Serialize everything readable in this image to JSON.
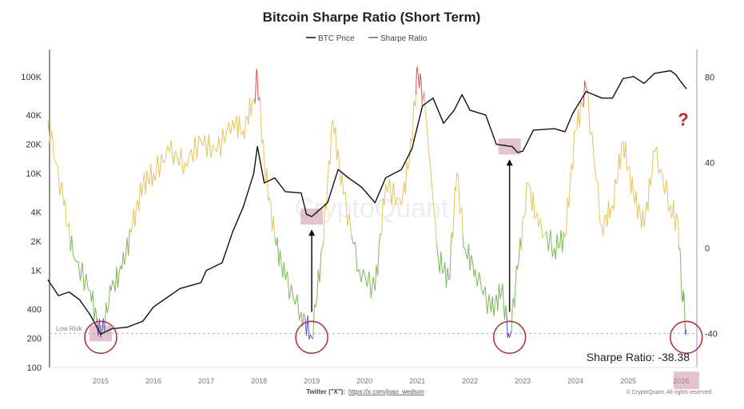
{
  "chart_data": {
    "type": "line",
    "title": "Bitcoin Sharpe Ratio (Short Term)",
    "legend": [
      {
        "name": "BTC Price",
        "color": "#111111"
      },
      {
        "name": "Sharpe Ratio",
        "color": "#6a5acd"
      }
    ],
    "legend_position": "top-center",
    "x_ticks": [
      "2015",
      "2016",
      "2017",
      "2018",
      "2019",
      "2020",
      "2021",
      "2022",
      "2023",
      "2024",
      "2025",
      "2026"
    ],
    "x_range": [
      2014.03,
      2026.3
    ],
    "y_left": {
      "scale": "log",
      "range": [
        100,
        190000
      ],
      "ticks": [
        100,
        200,
        400,
        1000,
        2000,
        4000,
        10000,
        20000,
        40000,
        100000
      ],
      "tick_labels": [
        "100",
        "200",
        "400",
        "1K",
        "2K",
        "4K",
        "10K",
        "20K",
        "40K",
        "100K"
      ]
    },
    "y_right": {
      "range": [
        -56,
        93
      ],
      "ticks": [
        -40,
        0,
        40,
        80
      ],
      "tick_labels": [
        "-40",
        "0",
        "40",
        "80"
      ]
    },
    "series": [
      {
        "name": "BTC Price",
        "axis": "left",
        "points": [
          [
            2014.0,
            800
          ],
          [
            2014.2,
            550
          ],
          [
            2014.4,
            600
          ],
          [
            2014.6,
            500
          ],
          [
            2014.8,
            350
          ],
          [
            2015.0,
            220
          ],
          [
            2015.2,
            250
          ],
          [
            2015.5,
            260
          ],
          [
            2015.8,
            300
          ],
          [
            2016.0,
            420
          ],
          [
            2016.5,
            650
          ],
          [
            2016.9,
            750
          ],
          [
            2017.0,
            1000
          ],
          [
            2017.3,
            1200
          ],
          [
            2017.5,
            2500
          ],
          [
            2017.7,
            4500
          ],
          [
            2017.9,
            10000
          ],
          [
            2017.97,
            19000
          ],
          [
            2018.1,
            8000
          ],
          [
            2018.3,
            9000
          ],
          [
            2018.5,
            6500
          ],
          [
            2018.8,
            6300
          ],
          [
            2018.9,
            3800
          ],
          [
            2019.0,
            3600
          ],
          [
            2019.3,
            5000
          ],
          [
            2019.5,
            11000
          ],
          [
            2019.7,
            9000
          ],
          [
            2019.95,
            7200
          ],
          [
            2020.2,
            5000
          ],
          [
            2020.4,
            9000
          ],
          [
            2020.7,
            11000
          ],
          [
            2020.9,
            18000
          ],
          [
            2021.0,
            30000
          ],
          [
            2021.1,
            50000
          ],
          [
            2021.3,
            60000
          ],
          [
            2021.5,
            33000
          ],
          [
            2021.7,
            45000
          ],
          [
            2021.85,
            65000
          ],
          [
            2022.0,
            45000
          ],
          [
            2022.3,
            40000
          ],
          [
            2022.5,
            20000
          ],
          [
            2022.8,
            19000
          ],
          [
            2022.9,
            16500
          ],
          [
            2023.0,
            17000
          ],
          [
            2023.2,
            28000
          ],
          [
            2023.6,
            29000
          ],
          [
            2023.8,
            27000
          ],
          [
            2023.95,
            42000
          ],
          [
            2024.2,
            70000
          ],
          [
            2024.5,
            60000
          ],
          [
            2024.7,
            60000
          ],
          [
            2024.9,
            95000
          ],
          [
            2025.1,
            100000
          ],
          [
            2025.3,
            85000
          ],
          [
            2025.5,
            108000
          ],
          [
            2025.8,
            115000
          ],
          [
            2025.9,
            105000
          ],
          [
            2026.0,
            88000
          ],
          [
            2026.1,
            75000
          ]
        ]
      },
      {
        "name": "Sharpe Ratio",
        "axis": "right",
        "points": [
          [
            2014.0,
            60
          ],
          [
            2014.3,
            20
          ],
          [
            2014.5,
            -5
          ],
          [
            2014.8,
            -20
          ],
          [
            2015.0,
            -42
          ],
          [
            2015.2,
            -20
          ],
          [
            2015.4,
            -10
          ],
          [
            2015.6,
            10
          ],
          [
            2015.8,
            30
          ],
          [
            2016.0,
            35
          ],
          [
            2016.3,
            45
          ],
          [
            2016.6,
            40
          ],
          [
            2016.9,
            50
          ],
          [
            2017.2,
            45
          ],
          [
            2017.5,
            60
          ],
          [
            2017.7,
            55
          ],
          [
            2017.9,
            70
          ],
          [
            2017.97,
            80
          ],
          [
            2018.1,
            40
          ],
          [
            2018.3,
            5
          ],
          [
            2018.5,
            -15
          ],
          [
            2018.8,
            -30
          ],
          [
            2019.0,
            -42
          ],
          [
            2019.2,
            0
          ],
          [
            2019.4,
            60
          ],
          [
            2019.6,
            25
          ],
          [
            2019.9,
            -10
          ],
          [
            2020.2,
            -20
          ],
          [
            2020.4,
            30
          ],
          [
            2020.7,
            20
          ],
          [
            2020.9,
            50
          ],
          [
            2021.0,
            85
          ],
          [
            2021.15,
            65
          ],
          [
            2021.4,
            -5
          ],
          [
            2021.6,
            -15
          ],
          [
            2021.75,
            35
          ],
          [
            2021.9,
            0
          ],
          [
            2022.1,
            -10
          ],
          [
            2022.4,
            -30
          ],
          [
            2022.6,
            -20
          ],
          [
            2022.75,
            -42
          ],
          [
            2022.9,
            -10
          ],
          [
            2023.1,
            30
          ],
          [
            2023.3,
            10
          ],
          [
            2023.6,
            0
          ],
          [
            2023.8,
            5
          ],
          [
            2024.0,
            55
          ],
          [
            2024.2,
            75
          ],
          [
            2024.5,
            10
          ],
          [
            2024.7,
            20
          ],
          [
            2024.9,
            50
          ],
          [
            2025.1,
            25
          ],
          [
            2025.3,
            10
          ],
          [
            2025.5,
            45
          ],
          [
            2025.8,
            20
          ],
          [
            2025.95,
            10
          ],
          [
            2026.0,
            -15
          ],
          [
            2026.05,
            -25
          ],
          [
            2026.1,
            -38.38
          ]
        ]
      }
    ],
    "color_bands": {
      "blue_below": -35,
      "green_below": 5,
      "red_above": 70,
      "colors": {
        "blue": "#5b4fd6",
        "green": "#7cb85a",
        "yellow": "#e6c35c",
        "red": "#d9534f"
      }
    },
    "annotations": {
      "low_risk_label": "Low Risk",
      "low_risk_level": -40,
      "circled_lows": [
        2015.0,
        2019.0,
        2022.75,
        2026.1
      ],
      "arrows_at": [
        2019.0,
        2022.75
      ],
      "question_mark": "?",
      "current_value_label": "Sharpe Ratio: -38.38"
    },
    "watermark": "CryptoQuant",
    "footer": {
      "twitter_label": "Twitter (\"X\"):",
      "twitter_link": "https://x.com/joao_wedson",
      "copyright": "© CryptoQuant. All rights reserved"
    }
  }
}
